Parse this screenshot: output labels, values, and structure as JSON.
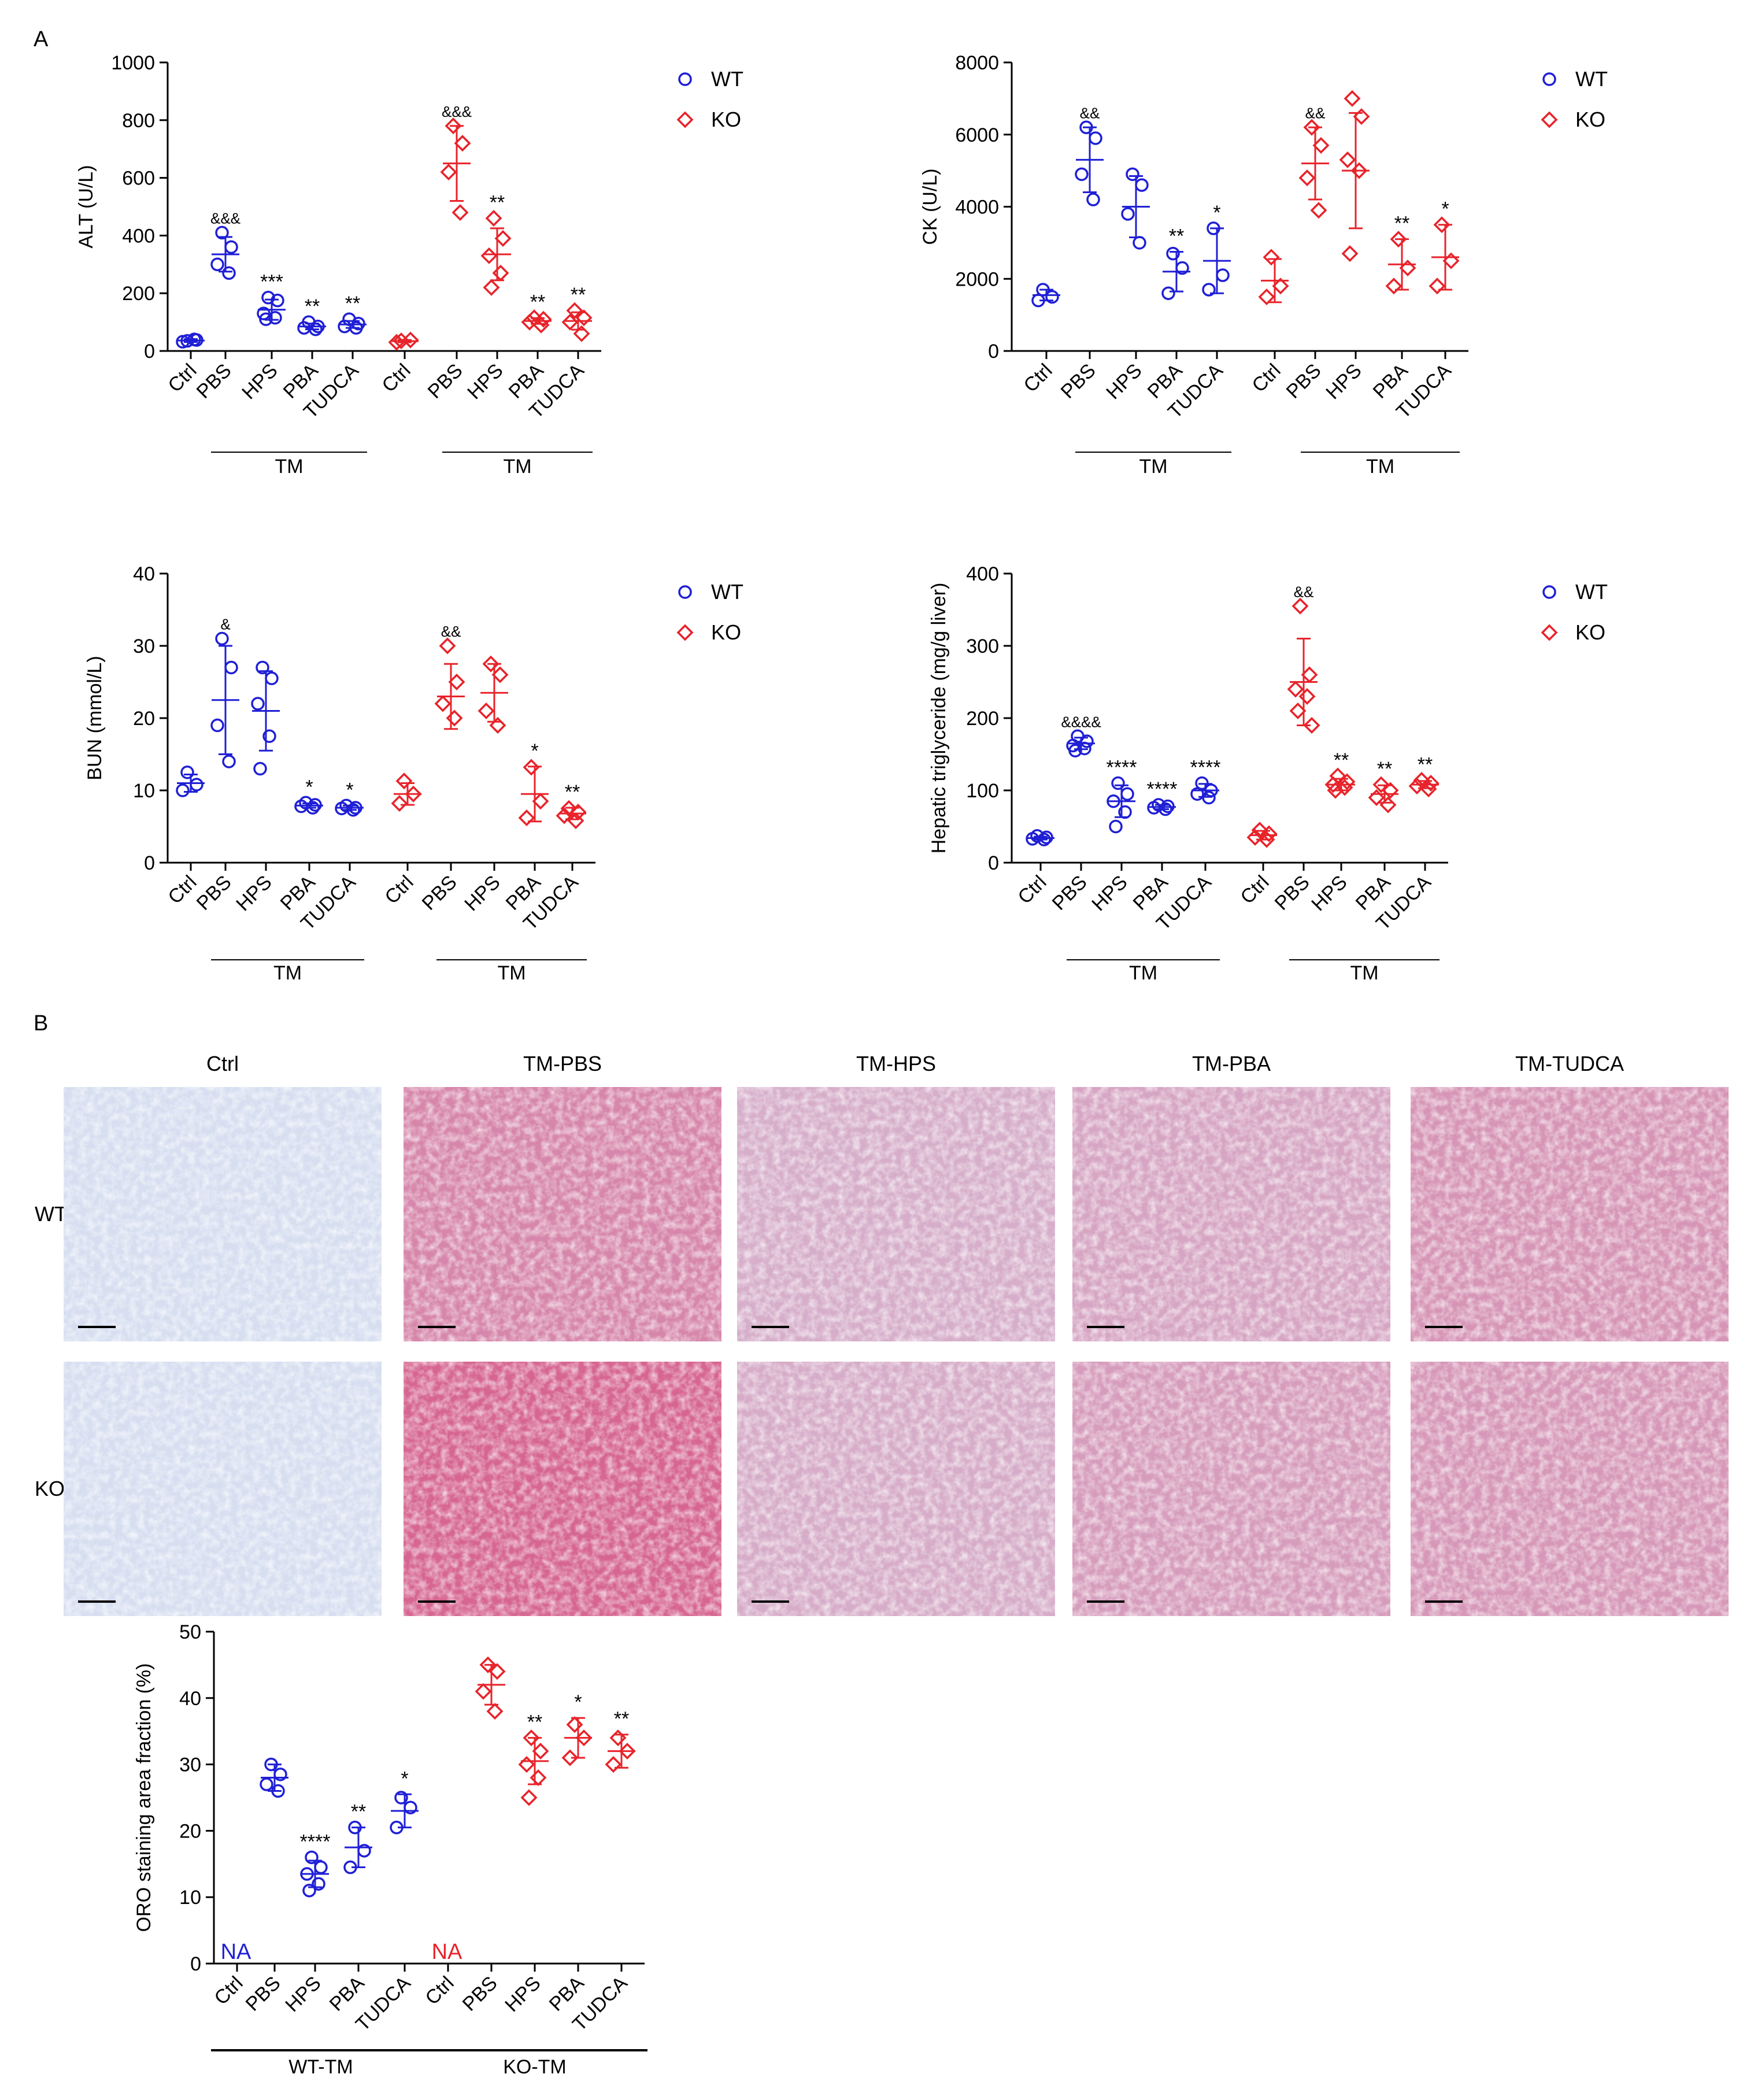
{
  "figure": {
    "panel_labels": [
      "A",
      "B"
    ],
    "colors": {
      "WT": "#1f1fd6",
      "KO": "#e8232a",
      "axis": "#000000"
    }
  },
  "legend": {
    "wt": "WT",
    "ko": "KO"
  },
  "treatment_group_label": "TM",
  "micrographs": {
    "columns": [
      "Ctrl",
      "TM-PBS",
      "TM-HPS",
      "TM-PBA",
      "TM-TUDCA"
    ],
    "rows": [
      "WT",
      "KO"
    ],
    "stain_intensity": [
      [
        0.0,
        0.7,
        0.38,
        0.45,
        0.58
      ],
      [
        0.0,
        0.95,
        0.4,
        0.52,
        0.56
      ]
    ]
  },
  "chart_data": [
    {
      "id": "alt",
      "type": "scatter",
      "ylabel": "ALT (U/L)",
      "ylim": [
        0,
        1000
      ],
      "yticks": [
        0,
        200,
        400,
        600,
        800,
        1000
      ],
      "categories": [
        "Ctrl",
        "PBS",
        "HPS",
        "PBA",
        "TUDCA",
        "Ctrl",
        "PBS",
        "HPS",
        "PBA",
        "TUDCA"
      ],
      "brackets": [
        {
          "label": "TM",
          "from": 1,
          "to": 4
        },
        {
          "label": "TM",
          "from": 6,
          "to": 9
        }
      ],
      "legend": true,
      "series": [
        {
          "name": "WT",
          "marker": "circle",
          "groups": [
            {
              "points": [
                35,
                38,
                32,
                40
              ],
              "mean": 36,
              "sd": 5
            },
            {
              "points": [
                410,
                360,
                300,
                270
              ],
              "mean": 335,
              "sd": 60,
              "annotation": "&&&"
            },
            {
              "points": [
                185,
                175,
                130,
                115,
                110
              ],
              "mean": 143,
              "sd": 35,
              "annotation": "***"
            },
            {
              "points": [
                100,
                85,
                80,
                75
              ],
              "mean": 85,
              "sd": 10,
              "annotation": "**"
            },
            {
              "points": [
                110,
                95,
                85,
                80
              ],
              "mean": 92,
              "sd": 12,
              "annotation": "**"
            }
          ]
        },
        {
          "name": "KO",
          "marker": "diamond",
          "groups": [
            {
              "points": [
                35,
                38,
                30
              ],
              "mean": 34,
              "sd": 4
            },
            {
              "points": [
                780,
                720,
                620,
                480
              ],
              "mean": 650,
              "sd": 130,
              "annotation": "&&&"
            },
            {
              "points": [
                460,
                390,
                330,
                270,
                220
              ],
              "mean": 335,
              "sd": 90,
              "annotation": "**"
            },
            {
              "points": [
                115,
                110,
                100,
                90
              ],
              "mean": 104,
              "sd": 10,
              "annotation": "**"
            },
            {
              "points": [
                140,
                115,
                100,
                60
              ],
              "mean": 104,
              "sd": 30,
              "annotation": "**"
            }
          ]
        }
      ]
    },
    {
      "id": "ck",
      "type": "scatter",
      "ylabel": "CK (U/L)",
      "ylim": [
        0,
        8000
      ],
      "yticks": [
        0,
        2000,
        4000,
        6000,
        8000
      ],
      "categories": [
        "Ctrl",
        "PBS",
        "HPS",
        "PBA",
        "TUDCA",
        "Ctrl",
        "PBS",
        "HPS",
        "PBA",
        "TUDCA"
      ],
      "brackets": [
        {
          "label": "TM",
          "from": 1,
          "to": 4
        },
        {
          "label": "TM",
          "from": 6,
          "to": 9
        }
      ],
      "legend": true,
      "series": [
        {
          "name": "WT",
          "marker": "circle",
          "groups": [
            {
              "points": [
                1700,
                1500,
                1400
              ],
              "mean": 1550,
              "sd": 150
            },
            {
              "points": [
                6200,
                5900,
                4900,
                4200
              ],
              "mean": 5300,
              "sd": 900,
              "annotation": "&&"
            },
            {
              "points": [
                4900,
                4600,
                3800,
                3000
              ],
              "mean": 4000,
              "sd": 850
            },
            {
              "points": [
                2700,
                2300,
                1600
              ],
              "mean": 2200,
              "sd": 550,
              "annotation": "**"
            },
            {
              "points": [
                3400,
                2100,
                1700
              ],
              "mean": 2500,
              "sd": 900,
              "annotation": "*"
            }
          ]
        },
        {
          "name": "KO",
          "marker": "diamond",
          "groups": [
            {
              "points": [
                2600,
                1800,
                1500
              ],
              "mean": 1950,
              "sd": 600
            },
            {
              "points": [
                6200,
                5700,
                4800,
                3900
              ],
              "mean": 5200,
              "sd": 1000,
              "annotation": "&&"
            },
            {
              "points": [
                7000,
                6500,
                5300,
                5000,
                2700
              ],
              "mean": 5000,
              "sd": 1600
            },
            {
              "points": [
                3100,
                2300,
                1800
              ],
              "mean": 2400,
              "sd": 700,
              "annotation": "**"
            },
            {
              "points": [
                3500,
                2500,
                1800
              ],
              "mean": 2600,
              "sd": 900,
              "annotation": "*"
            }
          ]
        }
      ]
    },
    {
      "id": "bun",
      "type": "scatter",
      "ylabel": "BUN (mmol/L)",
      "ylim": [
        0,
        40
      ],
      "yticks": [
        0,
        10,
        20,
        30,
        40
      ],
      "categories": [
        "Ctrl",
        "PBS",
        "HPS",
        "PBA",
        "TUDCA",
        "Ctrl",
        "PBS",
        "HPS",
        "PBA",
        "TUDCA"
      ],
      "brackets": [
        {
          "label": "TM",
          "from": 1,
          "to": 4
        },
        {
          "label": "TM",
          "from": 6,
          "to": 9
        }
      ],
      "legend": true,
      "series": [
        {
          "name": "WT",
          "marker": "circle",
          "groups": [
            {
              "points": [
                12.5,
                10.8,
                10.0
              ],
              "mean": 11,
              "sd": 1.2
            },
            {
              "points": [
                31,
                27,
                19,
                14
              ],
              "mean": 22.5,
              "sd": 7.5,
              "annotation": "&"
            },
            {
              "points": [
                27,
                25.5,
                22,
                17.5,
                13
              ],
              "mean": 21,
              "sd": 5.5
            },
            {
              "points": [
                8.3,
                8,
                7.8,
                7.6
              ],
              "mean": 7.9,
              "sd": 0.3,
              "annotation": "*"
            },
            {
              "points": [
                7.9,
                7.6,
                7.5,
                7.3
              ],
              "mean": 7.6,
              "sd": 0.3,
              "annotation": "*"
            }
          ]
        },
        {
          "name": "KO",
          "marker": "diamond",
          "groups": [
            {
              "points": [
                11.3,
                9.5,
                8.2
              ],
              "mean": 9.5,
              "sd": 1.5
            },
            {
              "points": [
                30,
                25,
                22,
                20
              ],
              "mean": 23,
              "sd": 4.5,
              "annotation": "&&"
            },
            {
              "points": [
                27.5,
                26,
                21,
                19
              ],
              "mean": 23.5,
              "sd": 4
            },
            {
              "points": [
                13.2,
                8.5,
                6.2
              ],
              "mean": 9.5,
              "sd": 3.8,
              "annotation": "*"
            },
            {
              "points": [
                7.5,
                7,
                6.5,
                5.8
              ],
              "mean": 6.8,
              "sd": 0.8,
              "annotation": "**"
            }
          ]
        }
      ]
    },
    {
      "id": "tg",
      "type": "scatter",
      "ylabel": "Hepatic triglyceride (mg/g liver)",
      "ylim": [
        0,
        400
      ],
      "yticks": [
        0,
        100,
        200,
        300,
        400
      ],
      "categories": [
        "Ctrl",
        "PBS",
        "HPS",
        "PBA",
        "TUDCA",
        "Ctrl",
        "PBS",
        "HPS",
        "PBA",
        "TUDCA"
      ],
      "brackets": [
        {
          "label": "TM",
          "from": 1,
          "to": 4
        },
        {
          "label": "TM",
          "from": 6,
          "to": 9
        }
      ],
      "legend": true,
      "series": [
        {
          "name": "WT",
          "marker": "circle",
          "groups": [
            {
              "points": [
                37,
                35,
                33,
                32
              ],
              "mean": 34,
              "sd": 2
            },
            {
              "points": [
                175,
                168,
                162,
                158,
                155
              ],
              "mean": 165,
              "sd": 8,
              "annotation": "&&&&"
            },
            {
              "points": [
                110,
                95,
                85,
                70,
                50
              ],
              "mean": 85,
              "sd": 22,
              "annotation": "****"
            },
            {
              "points": [
                80,
                78,
                76,
                74
              ],
              "mean": 77,
              "sd": 3,
              "annotation": "****"
            },
            {
              "points": [
                110,
                100,
                95,
                90
              ],
              "mean": 100,
              "sd": 9,
              "annotation": "****"
            }
          ]
        },
        {
          "name": "KO",
          "marker": "diamond",
          "groups": [
            {
              "points": [
                45,
                40,
                35,
                32
              ],
              "mean": 38,
              "sd": 6
            },
            {
              "points": [
                355,
                260,
                240,
                230,
                210,
                190
              ],
              "mean": 250,
              "sd": 60,
              "annotation": "&&"
            },
            {
              "points": [
                120,
                112,
                108,
                104,
                100
              ],
              "mean": 108,
              "sd": 8,
              "annotation": "**"
            },
            {
              "points": [
                108,
                100,
                90,
                80
              ],
              "mean": 95,
              "sd": 12,
              "annotation": "**"
            },
            {
              "points": [
                114,
                110,
                106,
                102
              ],
              "mean": 108,
              "sd": 5,
              "annotation": "**"
            }
          ]
        }
      ]
    },
    {
      "id": "oro",
      "type": "scatter",
      "ylabel": "ORO staining area fraction (%)",
      "ylim": [
        0,
        50
      ],
      "yticks": [
        0,
        10,
        20,
        30,
        40,
        50
      ],
      "categories": [
        "Ctrl",
        "PBS",
        "HPS",
        "PBA",
        "TUDCA",
        "Ctrl",
        "PBS",
        "HPS",
        "PBA",
        "TUDCA"
      ],
      "brackets": [
        {
          "label": "WT-TM",
          "from": 0,
          "to": 4
        },
        {
          "label": "KO-TM",
          "from": 5,
          "to": 9
        }
      ],
      "bracket_style": "bold",
      "legend": false,
      "na_label": "NA",
      "series": [
        {
          "name": "WT",
          "marker": "circle",
          "groups": [
            {
              "points": [],
              "na": true
            },
            {
              "points": [
                30,
                28.5,
                27,
                26
              ],
              "mean": 28,
              "sd": 2
            },
            {
              "points": [
                16,
                14.5,
                13.5,
                12,
                11
              ],
              "mean": 13.5,
              "sd": 2
            },
            {
              "points": [
                20.5,
                17,
                14.5
              ],
              "mean": 17.5,
              "sd": 3,
              "annotation": "**"
            },
            {
              "points": [
                25,
                23.5,
                20.5
              ],
              "mean": 23,
              "sd": 2.5,
              "annotation": "*"
            }
          ],
          "group_annotations": {
            "2": "****"
          }
        },
        {
          "name": "KO",
          "marker": "diamond",
          "groups": [
            {
              "points": [],
              "na": true
            },
            {
              "points": [
                45,
                44,
                41,
                38
              ],
              "mean": 42,
              "sd": 3
            },
            {
              "points": [
                34,
                32,
                30,
                28,
                25
              ],
              "mean": 30.5,
              "sd": 3.5,
              "annotation": "**"
            },
            {
              "points": [
                36,
                34,
                31
              ],
              "mean": 34,
              "sd": 3,
              "annotation": "*"
            },
            {
              "points": [
                34,
                32,
                30
              ],
              "mean": 32,
              "sd": 2.5,
              "annotation": "**"
            }
          ]
        }
      ]
    }
  ]
}
